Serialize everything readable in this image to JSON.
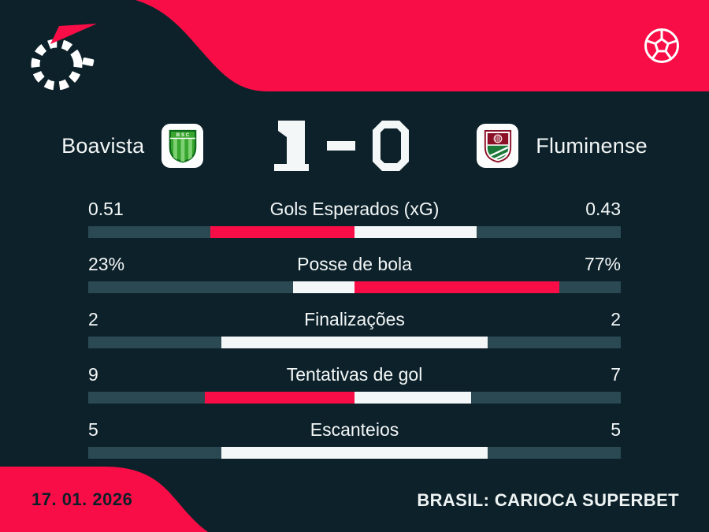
{
  "header": {
    "logo_icon": "flashscore-logo",
    "ball_icon": "soccer-ball"
  },
  "scoreboard": {
    "home_team": "Boavista",
    "away_team": "Fluminense",
    "home_score": "1",
    "away_score": "0",
    "separator": "-",
    "home_badge_letters": "B S C"
  },
  "stats": {
    "rows": [
      {
        "label": "Gols Esperados (xG)",
        "home_display": "0.51",
        "away_display": "0.43",
        "home": 0.51,
        "away": 0.43
      },
      {
        "label": "Posse de bola",
        "home_display": "23%",
        "away_display": "77%",
        "home": 23,
        "away": 77
      },
      {
        "label": "Finalizações",
        "home_display": "2",
        "away_display": "2",
        "home": 2,
        "away": 2
      },
      {
        "label": "Tentativas de gol",
        "home_display": "9",
        "away_display": "7",
        "home": 9,
        "away": 7
      },
      {
        "label": "Escanteios",
        "home_display": "5",
        "away_display": "5",
        "home": 5,
        "away": 5
      }
    ]
  },
  "footer": {
    "date": "17. 01. 2026",
    "competition": "BRASIL: CARIOCA SUPERBET"
  },
  "colors": {
    "red": "#f90d46",
    "background": "#0d212a",
    "bar_track": "#2a4952",
    "bar_white": "#f4f7f7",
    "text": "#f2f6f6",
    "footer_date_text": "#0c1f28"
  },
  "chart_data": {
    "type": "bar",
    "orientation": "horizontal-paired-from-center",
    "title": "Boavista 1 - 0 Fluminense",
    "categories": [
      "Gols Esperados (xG)",
      "Posse de bola",
      "Finalizações",
      "Tentativas de gol",
      "Escanteios"
    ],
    "series": [
      {
        "name": "Boavista",
        "values": [
          0.51,
          23,
          2,
          9,
          5
        ]
      },
      {
        "name": "Fluminense",
        "values": [
          0.43,
          77,
          2,
          7,
          5
        ]
      }
    ],
    "legend_position": "none",
    "annotation": "Each side's bar length is value/(home+away) of the half-track; the side leading the stat is drawn red, the other (or ties) white."
  }
}
